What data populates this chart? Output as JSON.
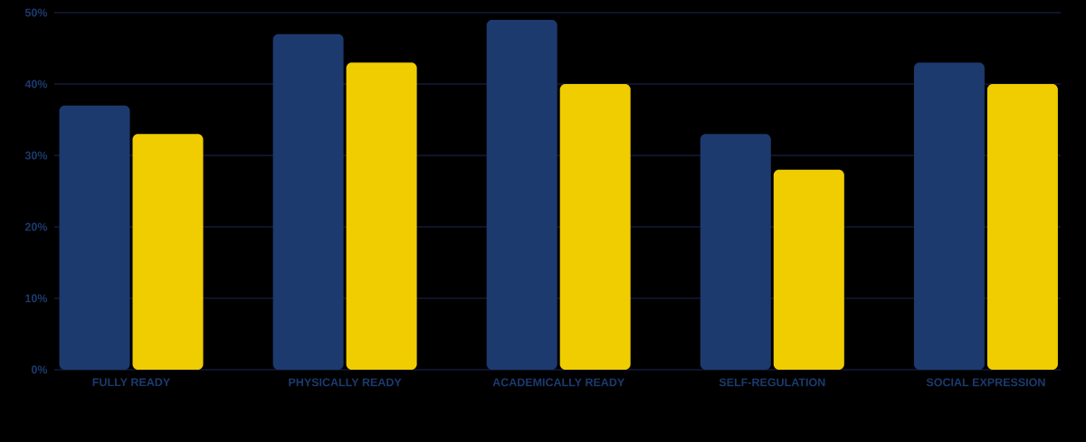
{
  "chart_data": {
    "type": "bar",
    "categories": [
      "FULLY READY",
      "PHYSICALLY READY",
      "ACADEMICALLY READY",
      "SELF-REGULATION",
      "SOCIAL EXPRESSION"
    ],
    "series": [
      {
        "color": "#1c3a6e",
        "values": [
          37,
          47,
          49,
          33,
          43
        ]
      },
      {
        "color": "#f0cd00",
        "values": [
          33,
          43,
          40,
          28,
          40
        ]
      }
    ],
    "ylim": [
      0,
      50
    ],
    "yticks": [
      {
        "value": 0,
        "label": "0%"
      },
      {
        "value": 10,
        "label": "10%"
      },
      {
        "value": 20,
        "label": "20%"
      },
      {
        "value": 30,
        "label": "30%"
      },
      {
        "value": 40,
        "label": "40%"
      },
      {
        "value": 50,
        "label": "50%"
      }
    ],
    "grid": "y"
  }
}
